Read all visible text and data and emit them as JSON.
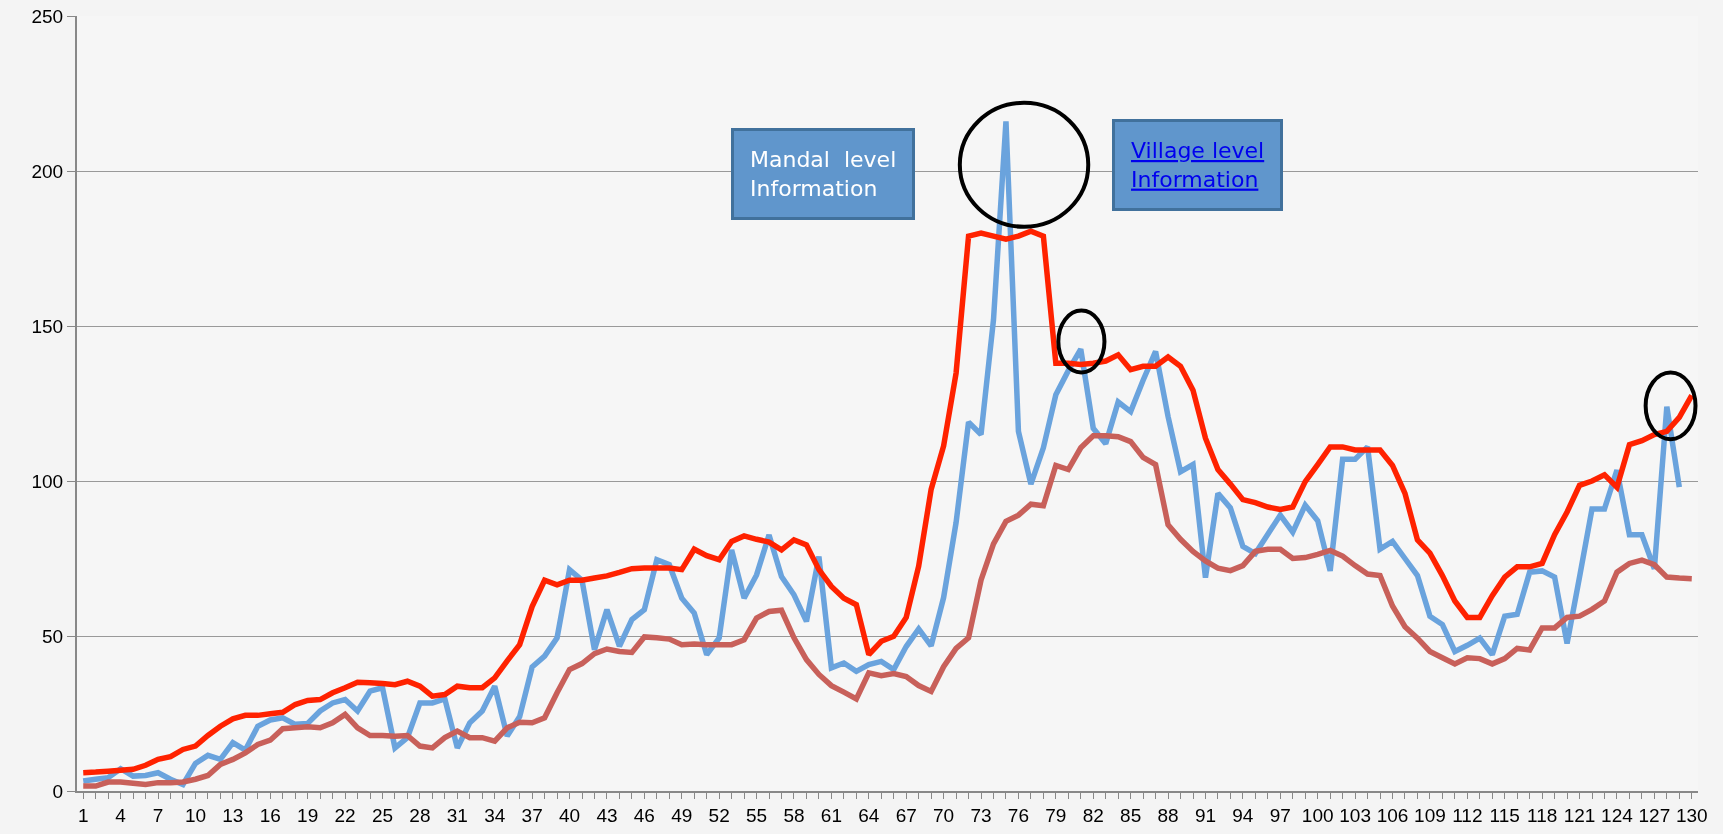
{
  "chart_data": {
    "type": "line",
    "categories": [
      "1",
      null,
      null,
      "4",
      null,
      null,
      "7",
      null,
      null,
      "10",
      null,
      null,
      "13",
      null,
      null,
      "16",
      null,
      null,
      "19",
      null,
      null,
      "22",
      null,
      null,
      "25",
      null,
      null,
      "28",
      null,
      null,
      "31",
      null,
      null,
      "34",
      null,
      null,
      "37",
      null,
      null,
      "40",
      null,
      null,
      "43",
      null,
      null,
      "46",
      null,
      null,
      "49",
      null,
      null,
      "52",
      null,
      null,
      "55",
      null,
      null,
      "58",
      null,
      null,
      "61",
      null,
      null,
      "64",
      null,
      null,
      "67",
      null,
      null,
      "70",
      null,
      null,
      "73",
      null,
      null,
      "76",
      null,
      null,
      "79",
      null,
      null,
      "82",
      null,
      null,
      "85",
      null,
      null,
      "88",
      null,
      null,
      "91",
      null,
      null,
      "94",
      null,
      null,
      "97",
      null,
      null,
      "100",
      null,
      null,
      "103",
      null,
      null,
      "106",
      null,
      null,
      "109",
      null,
      null,
      "112",
      null,
      null,
      "115",
      null,
      null,
      "118",
      null,
      null,
      "121",
      null,
      null,
      "124",
      null,
      null,
      "127",
      null,
      null,
      "130"
    ],
    "series": [
      {
        "color": "#6aa3dd",
        "values": [
          3.2,
          3.8,
          4.3,
          7.2,
          4.8,
          5,
          5.9,
          3.8,
          2.1,
          8.9,
          11.5,
          10.2,
          15.6,
          13.2,
          20.9,
          22.9,
          23.6,
          21.5,
          21.8,
          25.8,
          28.4,
          29.5,
          25.8,
          32.2,
          33.3,
          13.9,
          17.2,
          28.4,
          28.4,
          29.7,
          13.9,
          22,
          25.8,
          33.8,
          17.7,
          24,
          40,
          43.5,
          49.4,
          71.4,
          68,
          45.6,
          58.5,
          46.7,
          55.3,
          58.5,
          74.6,
          73,
          62.2,
          57.4,
          44,
          49.4,
          77.8,
          62.2,
          69.7,
          82.6,
          69.2,
          63.3,
          54.7,
          75.6,
          39.7,
          41.3,
          38.6,
          40.8,
          41.8,
          39.2,
          46.6,
          52.3,
          46.8,
          62.4,
          86.6,
          119,
          115,
          152,
          216,
          116,
          99,
          110.7,
          127.8,
          135.6,
          142.5,
          117,
          112,
          125.5,
          122.4,
          132.5,
          141.8,
          120.8,
          103,
          105.3,
          68.8,
          96,
          91.3,
          78.9,
          76.6,
          82.8,
          89,
          83.5,
          92.2,
          87.2,
          71,
          107,
          107,
          111,
          78,
          80.5,
          75,
          69.5,
          56.4,
          53.7,
          45,
          47,
          49.3,
          44,
          56.4,
          57,
          70.6,
          71,
          69,
          47.6,
          69,
          91,
          91,
          103.5,
          82.7,
          82.7,
          71.7,
          124,
          98,
          null
        ]
      },
      {
        "color": "#c8605a",
        "values": [
          1.6,
          1.6,
          2.9,
          2.9,
          2.5,
          2.1,
          2.7,
          2.7,
          2.9,
          3.8,
          5,
          8.6,
          10.2,
          12.3,
          15,
          16.4,
          20.1,
          20.4,
          20.7,
          20.4,
          22,
          24.7,
          20.4,
          17.9,
          17.9,
          17.7,
          17.9,
          14.5,
          13.9,
          17.2,
          19.3,
          17.2,
          17.2,
          16.1,
          20.4,
          22.2,
          22,
          23.6,
          31.7,
          39.2,
          41.1,
          44.3,
          45.8,
          45,
          44.7,
          49.7,
          49.4,
          49,
          47.2,
          47.4,
          47.2,
          47.2,
          47.2,
          48.8,
          55.8,
          57.9,
          58.3,
          49.4,
          42.4,
          37.6,
          34,
          31.9,
          29.7,
          38.1,
          37.2,
          37.9,
          36.9,
          34,
          32.1,
          40.1,
          46,
          49.4,
          68,
          79.7,
          87,
          89,
          92.5,
          92,
          105,
          103.7,
          110.7,
          114.6,
          114.6,
          114.3,
          112.7,
          107.6,
          105.3,
          85.9,
          81.2,
          77.3,
          74.2,
          71.9,
          71.1,
          72.7,
          77.3,
          78,
          78,
          75,
          75.3,
          76.3,
          77.6,
          75.8,
          72.7,
          70,
          69.5,
          59.7,
          53,
          49.3,
          45,
          43,
          41,
          43,
          42.7,
          41,
          42.7,
          46,
          45.5,
          52.6,
          52.6,
          56,
          56.4,
          58.6,
          61.3,
          70.6,
          73.4,
          74.5,
          73,
          69,
          68.7,
          68.5
        ]
      },
      {
        "color": "#ff2200",
        "values": [
          5.9,
          6.1,
          6.4,
          6.7,
          7,
          8.3,
          10.2,
          11.1,
          13.4,
          14.5,
          17.9,
          20.9,
          23.3,
          24.4,
          24.4,
          24.9,
          25.4,
          27.9,
          29.2,
          29.5,
          31.7,
          33.3,
          35.1,
          34.9,
          34.7,
          34.3,
          35.4,
          33.8,
          30.6,
          31.1,
          33.8,
          33.3,
          33.3,
          36.5,
          42,
          47.2,
          59.5,
          68,
          66.5,
          68,
          68,
          68.7,
          69.4,
          70.5,
          71.7,
          71.9,
          71.9,
          71.9,
          71.4,
          78,
          75.9,
          74.6,
          80.5,
          82.3,
          81.2,
          80.3,
          77.8,
          81,
          79.4,
          71.4,
          66,
          62.2,
          60.1,
          44,
          48.3,
          49.9,
          56,
          72.5,
          97.3,
          111.3,
          134.8,
          179,
          180,
          179,
          178,
          179,
          180.6,
          179,
          138,
          138,
          137.6,
          138,
          138.7,
          140.7,
          135.9,
          137,
          137,
          140,
          137,
          129.3,
          113.8,
          103.7,
          99,
          94,
          93,
          91.6,
          90.8,
          91.6,
          99.8,
          105.3,
          111,
          111,
          110,
          110,
          110,
          105,
          96,
          81,
          76.7,
          69.5,
          61.3,
          56,
          56,
          63,
          69,
          72.3,
          72.3,
          73.4,
          82.7,
          90,
          98.6,
          100,
          102,
          98,
          111.7,
          113,
          115,
          116,
          120.5,
          127.6
        ]
      }
    ],
    "ylim": [
      0,
      250
    ],
    "yticks": [
      0,
      50,
      100,
      150,
      200,
      250
    ],
    "grid": "y",
    "marker": "none",
    "line_style": "solid",
    "annotations": [
      "Mandal  level Information",
      "Village level Information"
    ]
  }
}
